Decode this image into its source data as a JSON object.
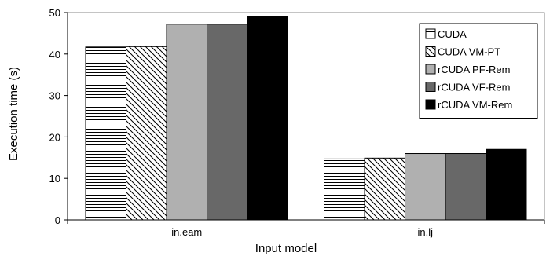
{
  "chart_data": {
    "type": "bar",
    "categories": [
      "in.eam",
      "in.lj"
    ],
    "series": [
      {
        "name": "CUDA",
        "values": [
          41.7,
          14.7
        ],
        "pattern": "hlines"
      },
      {
        "name": "CUDA VM-PT",
        "values": [
          41.8,
          14.9
        ],
        "pattern": "diag"
      },
      {
        "name": "rCUDA PF-Rem",
        "values": [
          47.2,
          16.0
        ],
        "color": "#b0b0b0"
      },
      {
        "name": "rCUDA VF-Rem",
        "values": [
          47.2,
          16.0
        ],
        "color": "#686868"
      },
      {
        "name": "rCUDA VM-Rem",
        "values": [
          49.0,
          17.0
        ],
        "color": "#000000"
      }
    ],
    "xlabel": "Input model",
    "ylabel": "Execution time (s)",
    "ylim": [
      0,
      50
    ],
    "yticks": [
      0,
      10,
      20,
      30,
      40,
      50
    ],
    "grid": false,
    "legend_position": "right"
  }
}
